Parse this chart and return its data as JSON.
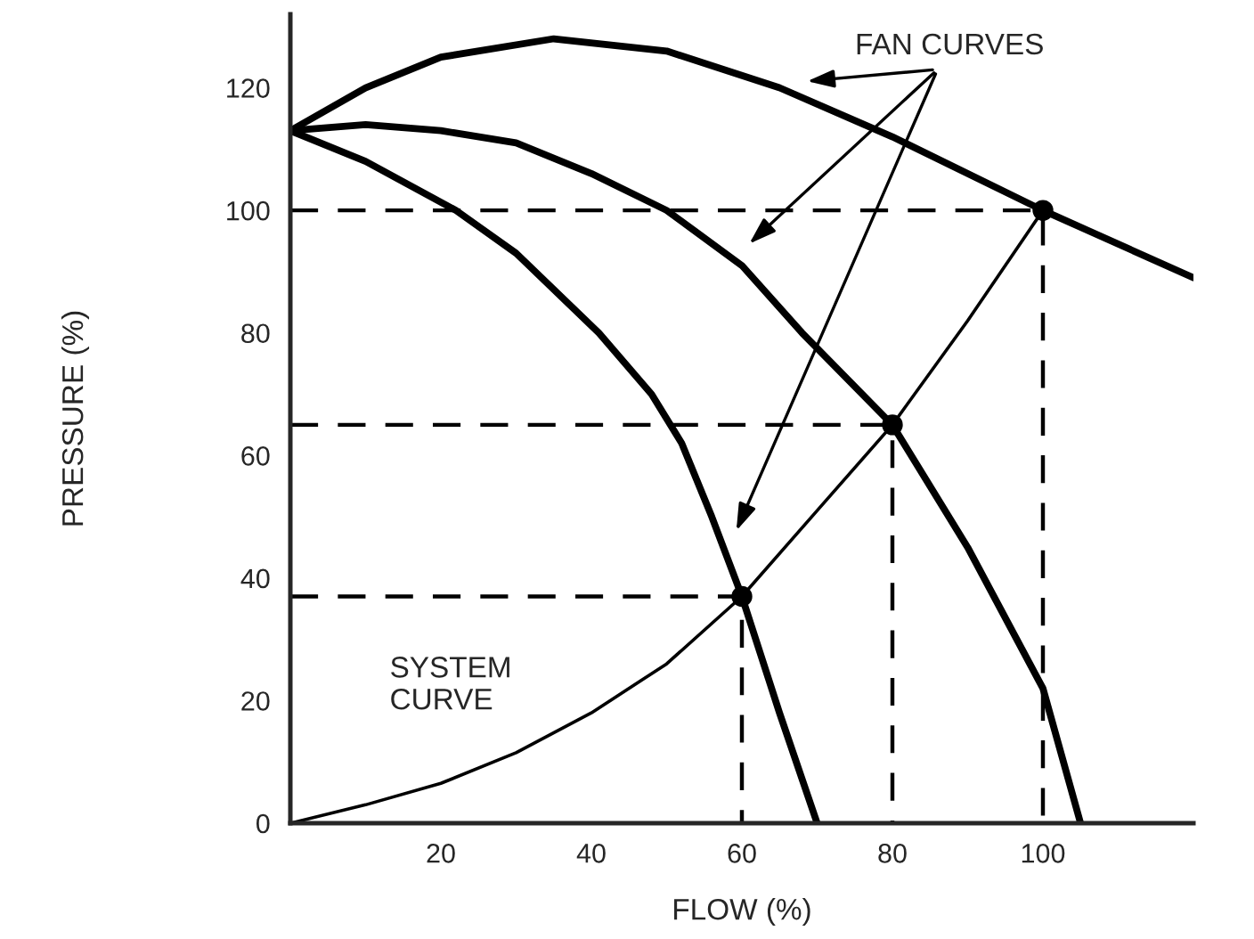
{
  "chart_data": {
    "type": "line",
    "xlabel": "FLOW (%)",
    "ylabel": "PRESSURE (%)",
    "xlim": [
      0,
      120
    ],
    "ylim": [
      0,
      132
    ],
    "xticks": [
      20,
      40,
      60,
      80,
      100
    ],
    "yticks": [
      0,
      20,
      40,
      60,
      80,
      100,
      120
    ],
    "grid": false,
    "legend": false,
    "series": [
      {
        "color": "#000000",
        "x": [
          0,
          10,
          20,
          35,
          50,
          65,
          80,
          100,
          120
        ],
        "values": [
          113,
          120,
          125,
          128,
          126,
          120,
          112,
          100,
          89
        ]
      },
      {
        "color": "#000000",
        "x": [
          0,
          10,
          20,
          30,
          40,
          50,
          60,
          68,
          80,
          90,
          100,
          105
        ],
        "values": [
          113,
          114,
          113,
          111,
          106,
          100,
          91,
          80,
          65,
          45,
          22,
          0
        ]
      },
      {
        "color": "#000000",
        "x": [
          0,
          10,
          22,
          30,
          41,
          48,
          52,
          56,
          60,
          65,
          70
        ],
        "values": [
          113,
          108,
          100,
          93,
          80,
          70,
          62,
          50,
          37,
          18,
          0
        ]
      },
      {
        "color": "#000000",
        "x": [
          0,
          10,
          20,
          30,
          40,
          50,
          60,
          70,
          80,
          90,
          100
        ],
        "values": [
          0,
          3,
          6.5,
          11.5,
          18,
          26,
          37,
          51,
          65,
          82,
          100
        ]
      },
      {
        "color": "#000000",
        "line_style": "dashed",
        "x": [
          0,
          100,
          100
        ],
        "values": [
          100,
          100,
          0
        ]
      },
      {
        "color": "#000000",
        "line_style": "dashed",
        "x": [
          0,
          80,
          80
        ],
        "values": [
          65,
          65,
          0
        ]
      },
      {
        "color": "#000000",
        "line_style": "dashed",
        "x": [
          0,
          60,
          60
        ],
        "values": [
          37,
          37,
          0
        ]
      },
      {
        "type": "scatter",
        "color": "#000000",
        "marker": "circle",
        "x": [
          60,
          80,
          100
        ],
        "values": [
          37,
          65,
          100
        ]
      }
    ],
    "annotations": [
      "FAN CURVES",
      "SYSTEM\nCURVE"
    ]
  }
}
